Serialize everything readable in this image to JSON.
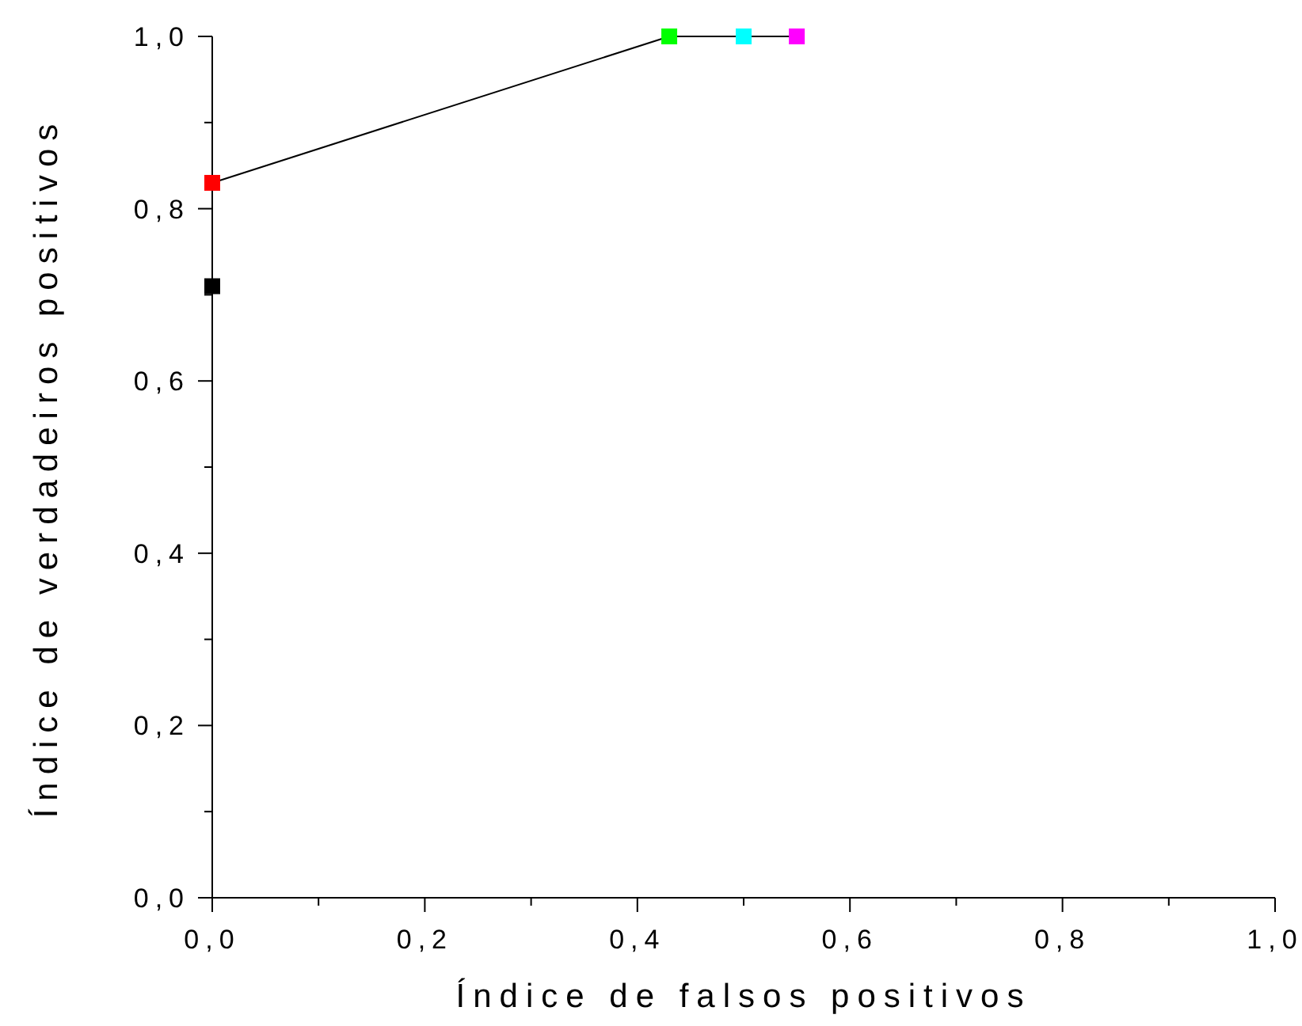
{
  "chart_data": {
    "type": "line",
    "xlabel": "Índice de falsos positivos",
    "ylabel": "Índice de verdadeiros positivos",
    "x": [
      0,
      0,
      0.43,
      0.5,
      0.55
    ],
    "series": [
      {
        "color": "#000000",
        "colors": [
          "#000000",
          "#ff0000",
          "#00ff00",
          "#00ffff",
          "#ff00ff"
        ],
        "values": [
          0.71,
          0.83,
          1.0,
          1.0,
          1.0
        ]
      }
    ],
    "marker": "square",
    "line_style": "solid",
    "grid": false,
    "xlim": [
      0,
      1
    ],
    "ylim": [
      0,
      1
    ],
    "xticks": [
      {
        "value": 0,
        "label": "0,0"
      },
      {
        "value": 0.1,
        "label": null
      },
      {
        "value": 0.2,
        "label": "0,2"
      },
      {
        "value": 0.3,
        "label": null
      },
      {
        "value": 0.4,
        "label": "0,4"
      },
      {
        "value": 0.5,
        "label": null
      },
      {
        "value": 0.6,
        "label": "0,6"
      },
      {
        "value": 0.7,
        "label": null
      },
      {
        "value": 0.8,
        "label": "0,8"
      },
      {
        "value": 0.9,
        "label": null
      },
      {
        "value": 1,
        "label": "1,0"
      }
    ],
    "yticks": [
      {
        "value": 0,
        "label": "0,0"
      },
      {
        "value": 0.1,
        "label": null
      },
      {
        "value": 0.2,
        "label": "0,2"
      },
      {
        "value": 0.3,
        "label": null
      },
      {
        "value": 0.4,
        "label": "0,4"
      },
      {
        "value": 0.5,
        "label": null
      },
      {
        "value": 0.6,
        "label": "0,6"
      },
      {
        "value": 0.7,
        "label": null
      },
      {
        "value": 0.8,
        "label": "0,8"
      },
      {
        "value": 0.9,
        "label": null
      },
      {
        "value": 1,
        "label": "1,0"
      }
    ]
  }
}
